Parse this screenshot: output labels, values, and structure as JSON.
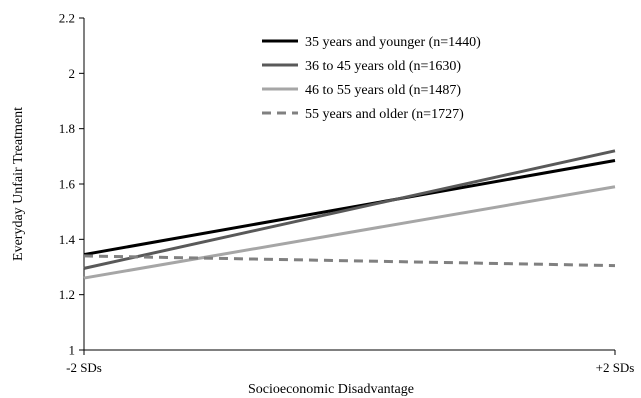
{
  "chart_data": {
    "type": "line",
    "title": "",
    "xlabel": "Socioeconomic Disadvantage",
    "ylabel": "Everyday Unfair Treatment",
    "x_ticks": [
      "-2 SDs",
      "+2 SDs"
    ],
    "x": [
      -2,
      2
    ],
    "ylim": [
      1,
      2.2
    ],
    "y_ticks": [
      "1",
      "1.2",
      "1.4",
      "1.6",
      "1.8",
      "2",
      "2.2"
    ],
    "y_tick_values": [
      1,
      1.2,
      1.4,
      1.6,
      1.8,
      2,
      2.2
    ],
    "grid": false,
    "legend_placement": "top-center",
    "series": [
      {
        "name": "35 years and younger (n=1440)",
        "values": [
          1.345,
          1.685
        ],
        "color": "#000000",
        "dash": "solid"
      },
      {
        "name": "36 to 45 years old (n=1630)",
        "values": [
          1.295,
          1.72
        ],
        "color": "#595959",
        "dash": "solid"
      },
      {
        "name": "46 to 55 years old (n=1487)",
        "values": [
          1.26,
          1.59
        ],
        "color": "#a6a6a6",
        "dash": "solid"
      },
      {
        "name": "55 years and older (n=1727)",
        "values": [
          1.34,
          1.305
        ],
        "color": "#808080",
        "dash": "dashed"
      }
    ]
  }
}
